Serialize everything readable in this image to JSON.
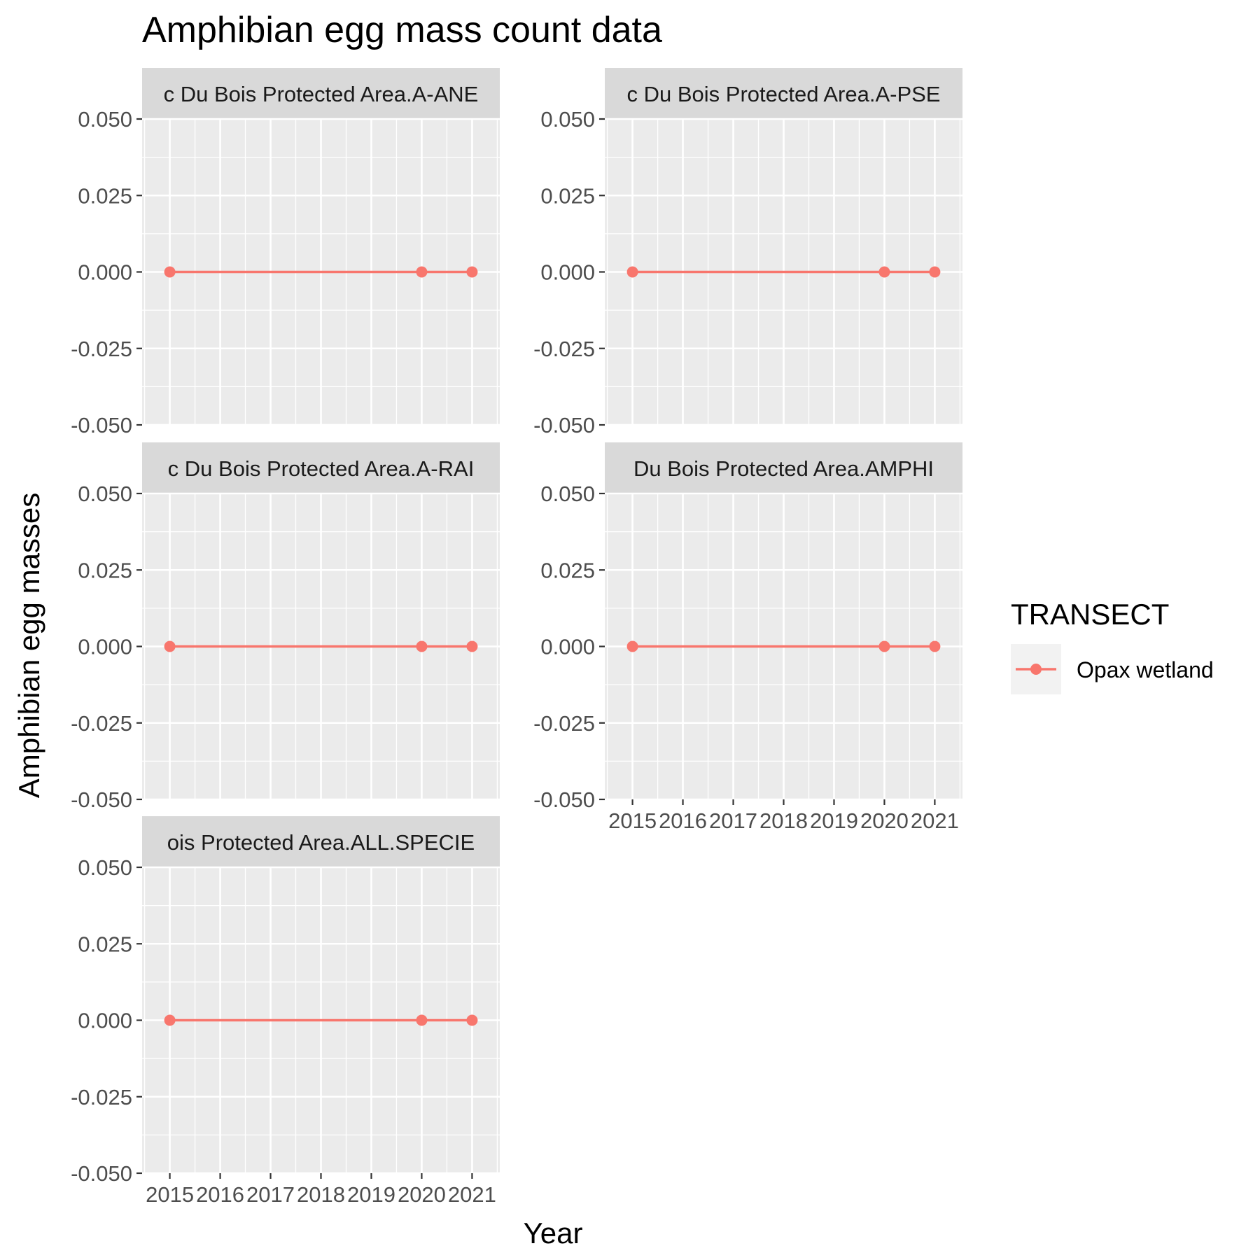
{
  "chart_data": {
    "type": "line",
    "title": "Amphibian egg mass count data",
    "xlabel": "Year",
    "ylabel": "Amphibian egg masses",
    "x_ticks": [
      "2015",
      "2016",
      "2017",
      "2018",
      "2019",
      "2020",
      "2021"
    ],
    "y_ticks": [
      "0.050",
      "0.025",
      "0.000",
      "-0.025",
      "-0.050"
    ],
    "xlim": [
      2014.45,
      2021.55
    ],
    "ylim": [
      -0.05,
      0.05
    ],
    "grid": true,
    "legend": {
      "title": "TRANSECT",
      "position": "right",
      "entries": [
        "Opax wetland"
      ]
    },
    "series_color": "#F8766D",
    "panels": [
      {
        "strip": "c Du Bois Protected Area.A-ANE",
        "series": [
          {
            "name": "Opax wetland",
            "x": [
              2015,
              2020,
              2021
            ],
            "y": [
              0,
              0,
              0
            ]
          }
        ]
      },
      {
        "strip": "c Du Bois Protected Area.A-PSE",
        "series": [
          {
            "name": "Opax wetland",
            "x": [
              2015,
              2020,
              2021
            ],
            "y": [
              0,
              0,
              0
            ]
          }
        ]
      },
      {
        "strip": "c Du Bois Protected Area.A-RAI",
        "series": [
          {
            "name": "Opax wetland",
            "x": [
              2015,
              2020,
              2021
            ],
            "y": [
              0,
              0,
              0
            ]
          }
        ]
      },
      {
        "strip": "Du Bois Protected Area.AMPHI",
        "series": [
          {
            "name": "Opax wetland",
            "x": [
              2015,
              2020,
              2021
            ],
            "y": [
              0,
              0,
              0
            ]
          }
        ]
      },
      {
        "strip": "ois Protected Area.ALL.SPECIE",
        "series": [
          {
            "name": "Opax wetland",
            "x": [
              2015,
              2020,
              2021
            ],
            "y": [
              0,
              0,
              0
            ]
          }
        ]
      }
    ]
  }
}
